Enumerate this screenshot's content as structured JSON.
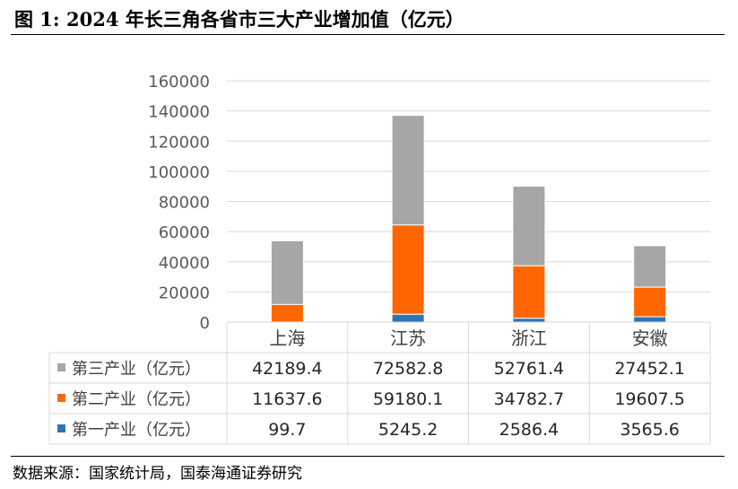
{
  "title": "图 1:  2024 年长三角各省市三大产业增加值（亿元）",
  "source": "数据来源：国家统计局，国泰海通证券研究",
  "chart_data": {
    "type": "bar",
    "stacked": true,
    "categories": [
      "上海",
      "江苏",
      "浙江",
      "安徽"
    ],
    "yticks": [
      "0",
      "20000",
      "40000",
      "60000",
      "80000",
      "100000",
      "120000",
      "140000",
      "160000"
    ],
    "ylim": [
      0,
      160000
    ],
    "grid": true,
    "series": [
      {
        "name": "第一产业（亿元）",
        "color": "#2e75b6",
        "values": [
          99.7,
          5245.2,
          2586.4,
          3565.6
        ],
        "labels": [
          "99.7",
          "5245.2",
          "2586.4",
          "3565.6"
        ]
      },
      {
        "name": "第二产业（亿元）",
        "color": "#ff6600",
        "values": [
          11637.6,
          59180.1,
          34782.7,
          19607.5
        ],
        "labels": [
          "11637.6",
          "59180.1",
          "34782.7",
          "19607.5"
        ]
      },
      {
        "name": "第三产业（亿元）",
        "color": "#a6a6a6",
        "values": [
          42189.4,
          72582.8,
          52761.4,
          27452.1
        ],
        "labels": [
          "42189.4",
          "72582.8",
          "52761.4",
          "27452.1"
        ]
      }
    ]
  }
}
